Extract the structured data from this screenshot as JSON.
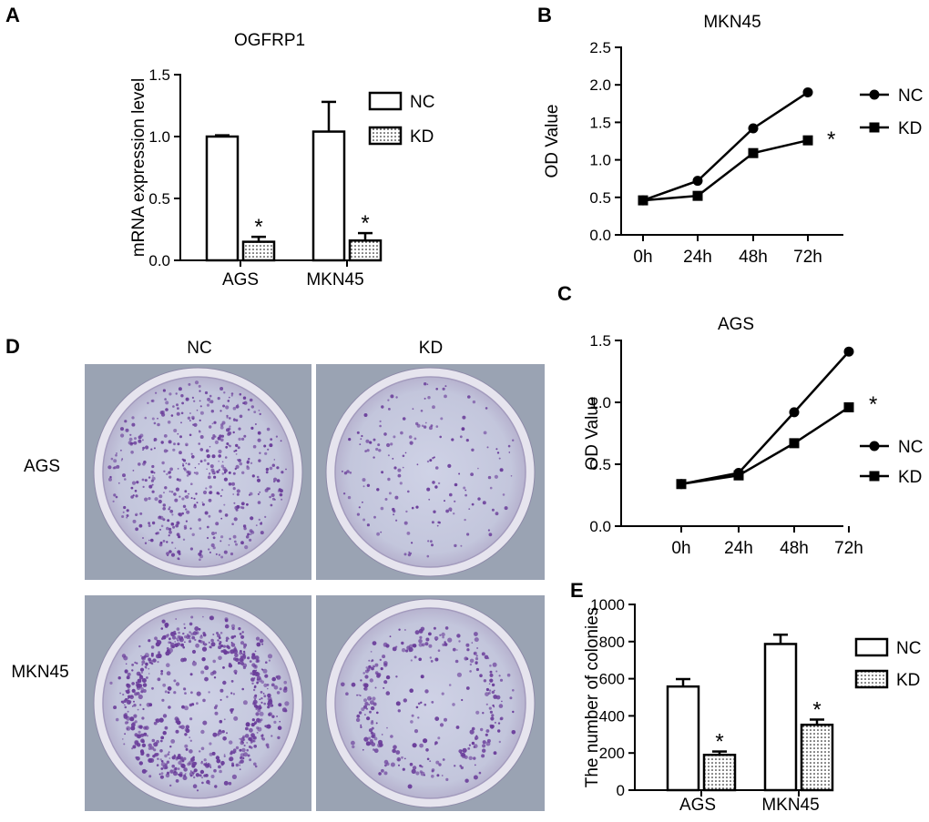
{
  "panel_labels": {
    "A": "A",
    "B": "B",
    "C": "C",
    "D": "D",
    "E": "E"
  },
  "colors": {
    "ink": "#000000",
    "plate_bg": "#9aa3b3",
    "plate_fill": "#c6c9df",
    "colony": "#6a3d9a",
    "plate_rim": "#e6e4ee"
  },
  "photo": {
    "col_labels": [
      "NC",
      "KD"
    ],
    "row_labels": [
      "AGS",
      "MKN45"
    ],
    "colony_density": {
      "AGS": {
        "NC": 0.56,
        "KD": 0.19
      },
      "MKN45": {
        "NC": 0.79,
        "KD": 0.35
      }
    }
  },
  "chart_data": [
    {
      "id": "A",
      "type": "bar",
      "title": "OGFRP1",
      "xlabel": "",
      "ylabel": "mRNA expression level",
      "categories": [
        "AGS",
        "MKN45"
      ],
      "series": [
        {
          "name": "NC",
          "values": [
            1.0,
            1.04
          ],
          "errors": [
            0.01,
            0.24
          ],
          "pattern": "open"
        },
        {
          "name": "KD",
          "values": [
            0.15,
            0.16
          ],
          "errors": [
            0.04,
            0.06
          ],
          "pattern": "dotted"
        }
      ],
      "ylim": [
        0,
        1.5
      ],
      "yticks": [
        "0.0",
        "0.5",
        "1.0",
        "1.5"
      ],
      "ytick_values": [
        0,
        0.5,
        1.0,
        1.5
      ],
      "annotations": [
        "*",
        "*"
      ],
      "legend": "right"
    },
    {
      "id": "B",
      "type": "line",
      "title": "MKN45",
      "xlabel": "",
      "ylabel": "OD Value",
      "x": [
        "0h",
        "24h",
        "48h",
        "72h"
      ],
      "series": [
        {
          "name": "NC",
          "values": [
            0.46,
            0.72,
            1.42,
            1.9
          ],
          "marker": "circle"
        },
        {
          "name": "KD",
          "values": [
            0.46,
            0.52,
            1.09,
            1.26
          ],
          "marker": "square"
        }
      ],
      "ylim": [
        0,
        2.5
      ],
      "yticks": [
        "0.0",
        "0.5",
        "1.0",
        "1.5",
        "2.0",
        "2.5"
      ],
      "ytick_values": [
        0,
        0.5,
        1.0,
        1.5,
        2.0,
        2.5
      ],
      "annotations": [
        "*"
      ],
      "legend": "top-right"
    },
    {
      "id": "C",
      "type": "line",
      "title": "AGS",
      "xlabel": "",
      "ylabel": "OD Value",
      "x": [
        "0h",
        "24h",
        "48h",
        "72h"
      ],
      "series": [
        {
          "name": "NC",
          "values": [
            0.34,
            0.43,
            0.92,
            1.41
          ],
          "marker": "circle"
        },
        {
          "name": "KD",
          "values": [
            0.34,
            0.41,
            0.67,
            0.96
          ],
          "marker": "square"
        }
      ],
      "ylim": [
        0,
        1.5
      ],
      "yticks": [
        "0.0",
        "0.5",
        "1.0",
        "1.5"
      ],
      "ytick_values": [
        0,
        0.5,
        1.0,
        1.5
      ],
      "annotations": [
        "*"
      ],
      "legend": "right"
    },
    {
      "id": "E",
      "type": "bar",
      "title": "",
      "xlabel": "",
      "ylabel": "The number of colonies",
      "categories": [
        "AGS",
        "MKN45"
      ],
      "series": [
        {
          "name": "NC",
          "values": [
            558,
            787
          ],
          "errors": [
            40,
            50
          ],
          "pattern": "open"
        },
        {
          "name": "KD",
          "values": [
            190,
            352
          ],
          "errors": [
            18,
            28
          ],
          "pattern": "dotted"
        }
      ],
      "ylim": [
        0,
        1000
      ],
      "yticks": [
        "0",
        "200",
        "400",
        "600",
        "800",
        "1000"
      ],
      "ytick_values": [
        0,
        200,
        400,
        600,
        800,
        1000
      ],
      "annotations": [
        "*",
        "*"
      ],
      "legend": "right"
    }
  ]
}
